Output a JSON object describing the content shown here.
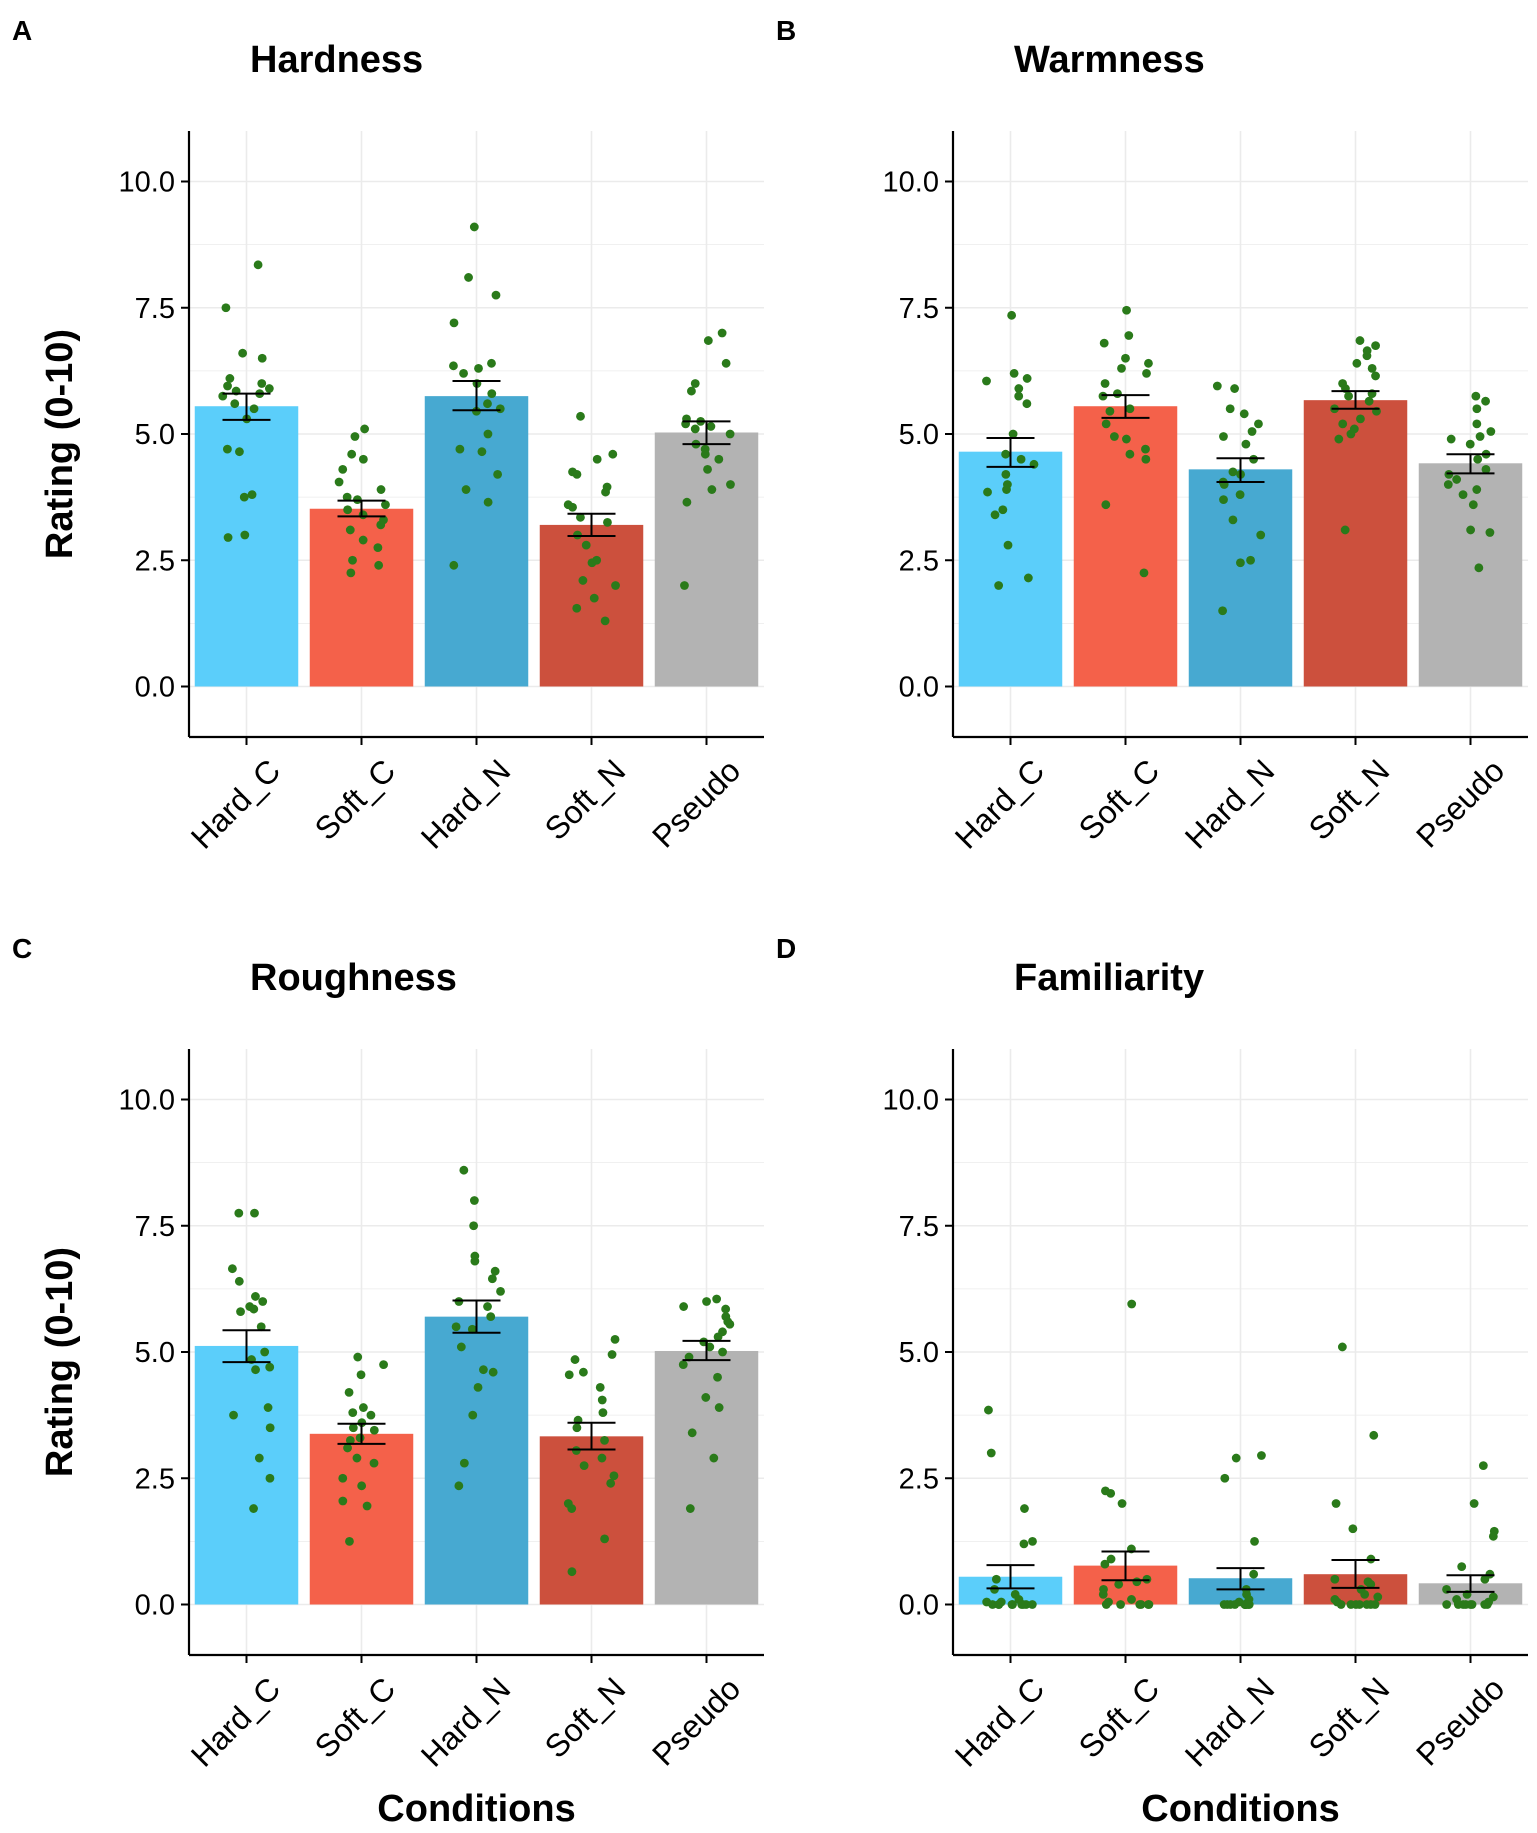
{
  "figure": {
    "colors": {
      "Hard_C": "#5bcefa",
      "Soft_C": "#f4614a",
      "Hard_N": "#47a9d1",
      "Soft_N": "#cc503d",
      "Pseudo": "#b3b3b3",
      "points": "#2a7a1a",
      "grid": "#ebebeb",
      "axis": "#000000"
    }
  },
  "chart_data": [
    {
      "type": "bar",
      "letter": "A",
      "title": "Hardness",
      "xlabel": "",
      "ylabel": "Rating (0-10)",
      "ylim": [
        -1.0,
        11.0
      ],
      "yticks": [
        "0.0",
        "2.5",
        "5.0",
        "7.5",
        "10.0"
      ],
      "categories": [
        "Hard_C",
        "Soft_C",
        "Hard_N",
        "Soft_N",
        "Pseudo"
      ],
      "values": [
        5.55,
        3.52,
        5.75,
        3.2,
        5.03
      ],
      "error_bars": [
        [
          5.28,
          5.8
        ],
        [
          3.37,
          3.68
        ],
        [
          5.47,
          6.05
        ],
        [
          2.98,
          3.42
        ],
        [
          4.8,
          5.25
        ]
      ],
      "points": [
        [
          8.35,
          7.5,
          6.6,
          6.5,
          6.1,
          6.0,
          5.95,
          5.9,
          5.85,
          5.8,
          5.75,
          5.6,
          5.5,
          5.3,
          4.7,
          4.65,
          3.8,
          3.75,
          3.0,
          2.95
        ],
        [
          5.1,
          4.95,
          4.6,
          4.5,
          4.3,
          4.05,
          3.9,
          3.75,
          3.7,
          3.6,
          3.5,
          3.4,
          3.3,
          3.2,
          3.1,
          2.9,
          2.75,
          2.5,
          2.4,
          2.25
        ],
        [
          9.1,
          8.1,
          7.75,
          7.2,
          6.4,
          6.35,
          6.3,
          6.2,
          6.0,
          5.8,
          5.6,
          5.5,
          5.45,
          5.0,
          4.7,
          4.65,
          4.2,
          3.9,
          3.65,
          2.4
        ],
        [
          5.35,
          4.6,
          4.5,
          4.25,
          4.2,
          3.95,
          3.85,
          3.6,
          3.55,
          3.35,
          3.25,
          3.0,
          2.8,
          2.5,
          2.45,
          2.1,
          2.0,
          1.75,
          1.55,
          1.3
        ],
        [
          7.0,
          6.85,
          6.4,
          6.0,
          5.85,
          5.3,
          5.25,
          5.2,
          5.15,
          5.1,
          5.0,
          4.8,
          4.7,
          4.6,
          4.5,
          4.3,
          4.0,
          3.9,
          3.65,
          2.0
        ]
      ]
    },
    {
      "type": "bar",
      "letter": "B",
      "title": "Warmness",
      "xlabel": "",
      "ylabel": "",
      "ylim": [
        -1.0,
        11.0
      ],
      "yticks": [
        "0.0",
        "2.5",
        "5.0",
        "7.5",
        "10.0"
      ],
      "categories": [
        "Hard_C",
        "Soft_C",
        "Hard_N",
        "Soft_N",
        "Pseudo"
      ],
      "values": [
        4.65,
        5.55,
        4.3,
        5.67,
        4.42
      ],
      "error_bars": [
        [
          4.35,
          4.92
        ],
        [
          5.32,
          5.77
        ],
        [
          4.05,
          4.52
        ],
        [
          5.5,
          5.85
        ],
        [
          4.22,
          4.6
        ]
      ],
      "points": [
        [
          7.35,
          6.2,
          6.1,
          6.05,
          5.9,
          5.75,
          5.6,
          5.0,
          4.6,
          4.5,
          4.4,
          4.2,
          4.0,
          3.9,
          3.85,
          3.5,
          3.4,
          2.8,
          2.15,
          2.0
        ],
        [
          7.45,
          6.95,
          6.8,
          6.5,
          6.4,
          6.3,
          6.2,
          6.0,
          5.8,
          5.75,
          5.5,
          5.45,
          5.2,
          4.95,
          4.9,
          4.7,
          4.6,
          4.5,
          3.6,
          2.25
        ],
        [
          5.95,
          5.9,
          5.5,
          5.4,
          5.2,
          5.05,
          4.95,
          4.8,
          4.5,
          4.25,
          4.2,
          4.05,
          4.0,
          3.8,
          3.7,
          3.3,
          3.0,
          2.5,
          2.45,
          1.5
        ],
        [
          6.85,
          6.75,
          6.65,
          6.55,
          6.4,
          6.3,
          6.15,
          6.0,
          5.9,
          5.8,
          5.75,
          5.65,
          5.5,
          5.45,
          5.3,
          5.2,
          5.1,
          5.0,
          4.9,
          3.1
        ],
        [
          5.75,
          5.65,
          5.5,
          5.2,
          5.05,
          4.95,
          4.9,
          4.8,
          4.6,
          4.5,
          4.3,
          4.2,
          4.1,
          4.0,
          3.9,
          3.8,
          3.6,
          3.1,
          3.05,
          2.35
        ]
      ]
    },
    {
      "type": "bar",
      "letter": "C",
      "title": "Roughness",
      "xlabel": "Conditions",
      "ylabel": "Rating (0-10)",
      "ylim": [
        -1.0,
        11.0
      ],
      "yticks": [
        "0.0",
        "2.5",
        "5.0",
        "7.5",
        "10.0"
      ],
      "categories": [
        "Hard_C",
        "Soft_C",
        "Hard_N",
        "Soft_N",
        "Pseudo"
      ],
      "values": [
        5.12,
        3.38,
        5.7,
        3.33,
        5.02
      ],
      "error_bars": [
        [
          4.8,
          5.43
        ],
        [
          3.18,
          3.58
        ],
        [
          5.38,
          6.02
        ],
        [
          3.07,
          3.6
        ],
        [
          4.84,
          5.22
        ]
      ],
      "points": [
        [
          7.75,
          7.75,
          6.65,
          6.4,
          6.1,
          6.0,
          5.9,
          5.85,
          5.8,
          5.5,
          5.0,
          4.85,
          4.7,
          4.65,
          3.9,
          3.75,
          3.5,
          2.9,
          2.5,
          1.9
        ],
        [
          4.9,
          4.75,
          4.55,
          4.2,
          3.9,
          3.8,
          3.75,
          3.6,
          3.5,
          3.45,
          3.3,
          3.25,
          3.1,
          2.9,
          2.8,
          2.5,
          2.35,
          2.05,
          1.95,
          1.25
        ],
        [
          8.6,
          8.0,
          7.5,
          6.9,
          6.8,
          6.6,
          6.45,
          6.2,
          6.0,
          5.9,
          5.7,
          5.5,
          5.45,
          5.1,
          4.65,
          4.6,
          4.3,
          3.75,
          2.8,
          2.35
        ],
        [
          5.25,
          4.95,
          4.85,
          4.6,
          4.55,
          4.3,
          4.05,
          3.8,
          3.65,
          3.5,
          3.25,
          3.05,
          2.9,
          2.75,
          2.55,
          2.4,
          2.0,
          1.9,
          1.3,
          0.65
        ],
        [
          6.05,
          6.0,
          5.9,
          5.85,
          5.7,
          5.6,
          5.55,
          5.4,
          5.3,
          5.2,
          5.1,
          5.0,
          4.9,
          4.75,
          4.5,
          4.1,
          3.9,
          3.4,
          2.9,
          1.9
        ]
      ]
    },
    {
      "type": "bar",
      "letter": "D",
      "title": "Familiarity",
      "xlabel": "Conditions",
      "ylabel": "",
      "ylim": [
        -1.0,
        11.0
      ],
      "yticks": [
        "0.0",
        "2.5",
        "5.0",
        "7.5",
        "10.0"
      ],
      "categories": [
        "Hard_C",
        "Soft_C",
        "Hard_N",
        "Soft_N",
        "Pseudo"
      ],
      "values": [
        0.55,
        0.77,
        0.52,
        0.6,
        0.42
      ],
      "error_bars": [
        [
          0.32,
          0.78
        ],
        [
          0.48,
          1.05
        ],
        [
          0.3,
          0.72
        ],
        [
          0.33,
          0.88
        ],
        [
          0.25,
          0.58
        ]
      ],
      "points": [
        [
          3.85,
          3.0,
          1.9,
          1.25,
          1.2,
          0.5,
          0.3,
          0.2,
          0.1,
          0.05,
          0.05,
          0.0,
          0.0,
          0.0,
          0.0,
          0.0,
          0.0,
          0.0,
          0.0,
          0.0
        ],
        [
          5.95,
          2.25,
          2.2,
          2.0,
          1.1,
          0.9,
          0.8,
          0.5,
          0.45,
          0.4,
          0.3,
          0.2,
          0.1,
          0.05,
          0.0,
          0.0,
          0.0,
          0.0,
          0.0,
          0.0
        ],
        [
          2.95,
          2.9,
          2.5,
          1.25,
          0.6,
          0.3,
          0.2,
          0.1,
          0.05,
          0.0,
          0.0,
          0.0,
          0.0,
          0.0,
          0.0,
          0.0,
          0.0,
          0.0,
          0.0,
          0.0
        ],
        [
          5.1,
          3.35,
          2.0,
          1.5,
          0.9,
          0.5,
          0.45,
          0.4,
          0.3,
          0.2,
          0.15,
          0.1,
          0.05,
          0.0,
          0.0,
          0.0,
          0.0,
          0.0,
          0.0,
          0.0
        ],
        [
          2.75,
          2.0,
          1.45,
          1.35,
          0.75,
          0.6,
          0.5,
          0.3,
          0.2,
          0.15,
          0.1,
          0.05,
          0.0,
          0.0,
          0.0,
          0.0,
          0.0,
          0.0,
          0.0,
          0.0
        ]
      ]
    }
  ]
}
